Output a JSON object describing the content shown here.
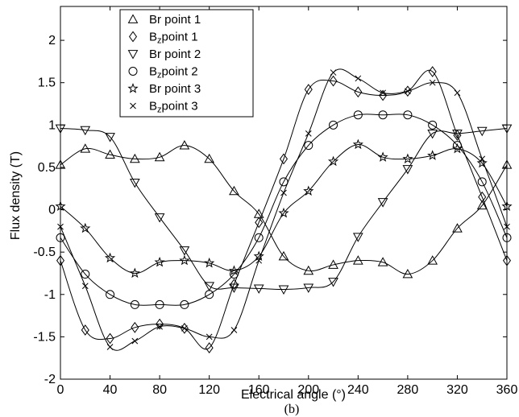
{
  "chart_data": {
    "type": "line",
    "xlabel": "Electrical angle (°)",
    "ylabel": "Flux density (T)",
    "caption": "(b)",
    "xlim": [
      0,
      360
    ],
    "ylim": [
      -2,
      2.4
    ],
    "xticks": [
      0,
      40,
      80,
      120,
      160,
      200,
      240,
      280,
      320,
      360
    ],
    "yticks": [
      -2,
      -1.5,
      -1,
      -0.5,
      0,
      0.5,
      1,
      1.5,
      2
    ],
    "yticklabels": [
      "-2",
      "-1.5",
      "-1",
      "-0.5",
      "0",
      "0.5",
      "1",
      "1.5",
      "2"
    ],
    "legend": {
      "position": "top-left"
    },
    "series": [
      {
        "name": "Br point 1",
        "legend_sub": "",
        "legend_rest": "",
        "marker": "triangle-up",
        "x": [
          0,
          20,
          40,
          60,
          80,
          100,
          120,
          140,
          160,
          180,
          200,
          220,
          240,
          260,
          280,
          300,
          320,
          340,
          360
        ],
        "y": [
          0.53,
          0.72,
          0.65,
          0.6,
          0.62,
          0.76,
          0.6,
          0.22,
          -0.05,
          -0.55,
          -0.72,
          -0.65,
          -0.6,
          -0.62,
          -0.76,
          -0.6,
          -0.22,
          0.05,
          0.53
        ]
      },
      {
        "name": "B",
        "legend_sub": "z",
        "legend_rest": "point 1",
        "marker": "diamond",
        "x": [
          0,
          20,
          40,
          60,
          80,
          100,
          120,
          140,
          160,
          180,
          200,
          220,
          240,
          260,
          280,
          300,
          320,
          340,
          360
        ],
        "y": [
          -0.6,
          -1.42,
          -1.52,
          -1.39,
          -1.35,
          -1.4,
          -1.63,
          -0.88,
          -0.15,
          0.6,
          1.42,
          1.52,
          1.39,
          1.35,
          1.4,
          1.63,
          0.88,
          0.15,
          -0.6
        ]
      },
      {
        "name": "Br point 2",
        "legend_sub": "",
        "legend_rest": "",
        "marker": "triangle-down",
        "x": [
          0,
          20,
          40,
          60,
          80,
          100,
          120,
          140,
          160,
          180,
          200,
          220,
          240,
          260,
          280,
          300,
          320,
          340,
          360
        ],
        "y": [
          0.96,
          0.94,
          0.86,
          0.32,
          -0.09,
          -0.48,
          -0.9,
          -0.92,
          -0.93,
          -0.94,
          -0.92,
          -0.85,
          -0.32,
          0.09,
          0.48,
          0.9,
          0.9,
          0.93,
          0.96
        ]
      },
      {
        "name": "B",
        "legend_sub": "z",
        "legend_rest": "point 2",
        "marker": "circle",
        "x": [
          0,
          20,
          40,
          60,
          80,
          100,
          120,
          140,
          160,
          180,
          200,
          220,
          240,
          260,
          280,
          300,
          320,
          340,
          360
        ],
        "y": [
          -0.33,
          -0.76,
          -1.0,
          -1.12,
          -1.12,
          -1.12,
          -1.0,
          -0.76,
          -0.33,
          0.33,
          0.76,
          1.0,
          1.12,
          1.12,
          1.12,
          1.0,
          0.76,
          0.33,
          -0.33
        ]
      },
      {
        "name": "Br point 3",
        "legend_sub": "",
        "legend_rest": "",
        "marker": "star",
        "x": [
          0,
          20,
          40,
          60,
          80,
          100,
          120,
          140,
          160,
          180,
          200,
          220,
          240,
          260,
          280,
          300,
          320,
          340,
          360
        ],
        "y": [
          0.04,
          -0.22,
          -0.57,
          -0.75,
          -0.62,
          -0.6,
          -0.63,
          -0.72,
          -0.55,
          -0.04,
          0.22,
          0.57,
          0.77,
          0.62,
          0.6,
          0.64,
          0.72,
          0.55,
          0.04
        ]
      },
      {
        "name": "B",
        "legend_sub": "z",
        "legend_rest": "point 3",
        "marker": "x",
        "x": [
          0,
          20,
          40,
          60,
          80,
          100,
          120,
          140,
          160,
          180,
          200,
          220,
          240,
          260,
          280,
          300,
          320,
          340,
          360
        ],
        "y": [
          -0.2,
          -0.9,
          -1.62,
          -1.55,
          -1.38,
          -1.4,
          -1.5,
          -1.42,
          -0.6,
          0.2,
          0.9,
          1.62,
          1.55,
          1.38,
          1.4,
          1.5,
          1.38,
          0.6,
          -0.2
        ]
      }
    ]
  }
}
